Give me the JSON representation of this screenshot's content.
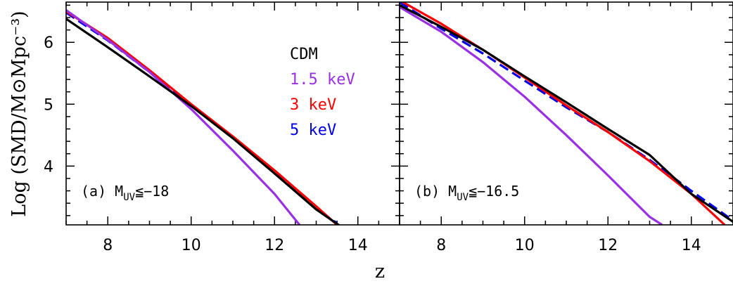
{
  "chart_data": {
    "type": "line",
    "xlabel": "z",
    "ylabel": "Log (SMD/M⊙Mpc⁻³)",
    "legend": {
      "placement": "top-right of panel (a)",
      "entries": [
        {
          "label": "CDM",
          "color": "#000000"
        },
        {
          "label": "1.5 keV",
          "color": "#9a30e6"
        },
        {
          "label": "3 keV",
          "color": "#ff0000"
        },
        {
          "label": "5 keV",
          "color": "#0000ee"
        }
      ]
    },
    "panels": [
      {
        "label": "(a) M_UV≦−18",
        "label_text": "(a) M",
        "label_sub": "UV",
        "label_rest": "≦−18",
        "xlim": [
          7,
          15
        ],
        "ylim": [
          3.05,
          6.65
        ],
        "xticks": [
          8,
          10,
          12,
          14
        ],
        "yticks": [
          4,
          5,
          6
        ],
        "series": [
          {
            "name": "5 keV",
            "color": "#0000ee",
            "dashed": true,
            "x": [
              7,
              8,
              9,
              10,
              11,
              12,
              13,
              13.5
            ],
            "y": [
              6.48,
              6.03,
              5.52,
              4.98,
              4.47,
              3.92,
              3.3,
              3.08
            ]
          },
          {
            "name": "3 keV",
            "color": "#ff0000",
            "x": [
              7,
              8,
              9,
              10,
              11,
              12,
              13,
              13.5
            ],
            "y": [
              6.5,
              6.07,
              5.55,
              5.0,
              4.48,
              3.93,
              3.35,
              3.05
            ]
          },
          {
            "name": "1.5 keV",
            "color": "#9a30e6",
            "x": [
              7,
              8,
              9,
              10,
              11,
              12,
              12.6
            ],
            "y": [
              6.52,
              6.04,
              5.52,
              4.92,
              4.25,
              3.55,
              3.05
            ]
          },
          {
            "name": "CDM",
            "color": "#000000",
            "x": [
              7,
              8,
              9,
              10,
              11,
              12,
              13,
              13.6
            ],
            "y": [
              6.38,
              5.92,
              5.45,
              4.97,
              4.45,
              3.88,
              3.3,
              3.02
            ]
          }
        ]
      },
      {
        "label": "(b) M_UV≦−16.5",
        "label_text": "(b) M",
        "label_sub": "UV",
        "label_rest": "≦−16.5",
        "xlim": [
          7,
          15
        ],
        "ylim": [
          3.05,
          6.65
        ],
        "xticks": [
          8,
          10,
          12,
          14
        ],
        "yticks": [
          4,
          5,
          6
        ],
        "series": [
          {
            "name": "5 keV",
            "color": "#0000ee",
            "dashed": true,
            "x": [
              7,
              8,
              9,
              10,
              11,
              12,
              13,
              14,
              15
            ],
            "y": [
              6.65,
              6.22,
              5.82,
              5.38,
              4.95,
              4.55,
              4.1,
              3.6,
              3.12
            ]
          },
          {
            "name": "3 keV",
            "color": "#ff0000",
            "x": [
              7,
              8,
              9,
              10,
              11,
              12,
              13,
              14,
              14.8
            ],
            "y": [
              6.68,
              6.3,
              5.88,
              5.43,
              4.98,
              4.55,
              4.08,
              3.55,
              3.05
            ]
          },
          {
            "name": "1.5 keV",
            "color": "#9a30e6",
            "x": [
              7,
              8,
              9,
              10,
              11,
              12,
              13,
              13.3
            ],
            "y": [
              6.57,
              6.17,
              5.68,
              5.12,
              4.5,
              3.85,
              3.18,
              3.05
            ]
          },
          {
            "name": "CDM",
            "color": "#000000",
            "x": [
              7,
              8,
              9,
              10,
              11,
              12,
              13,
              14,
              15
            ],
            "y": [
              6.6,
              6.25,
              5.88,
              5.45,
              5.03,
              4.6,
              4.18,
              3.55,
              3.1
            ]
          }
        ]
      }
    ]
  }
}
